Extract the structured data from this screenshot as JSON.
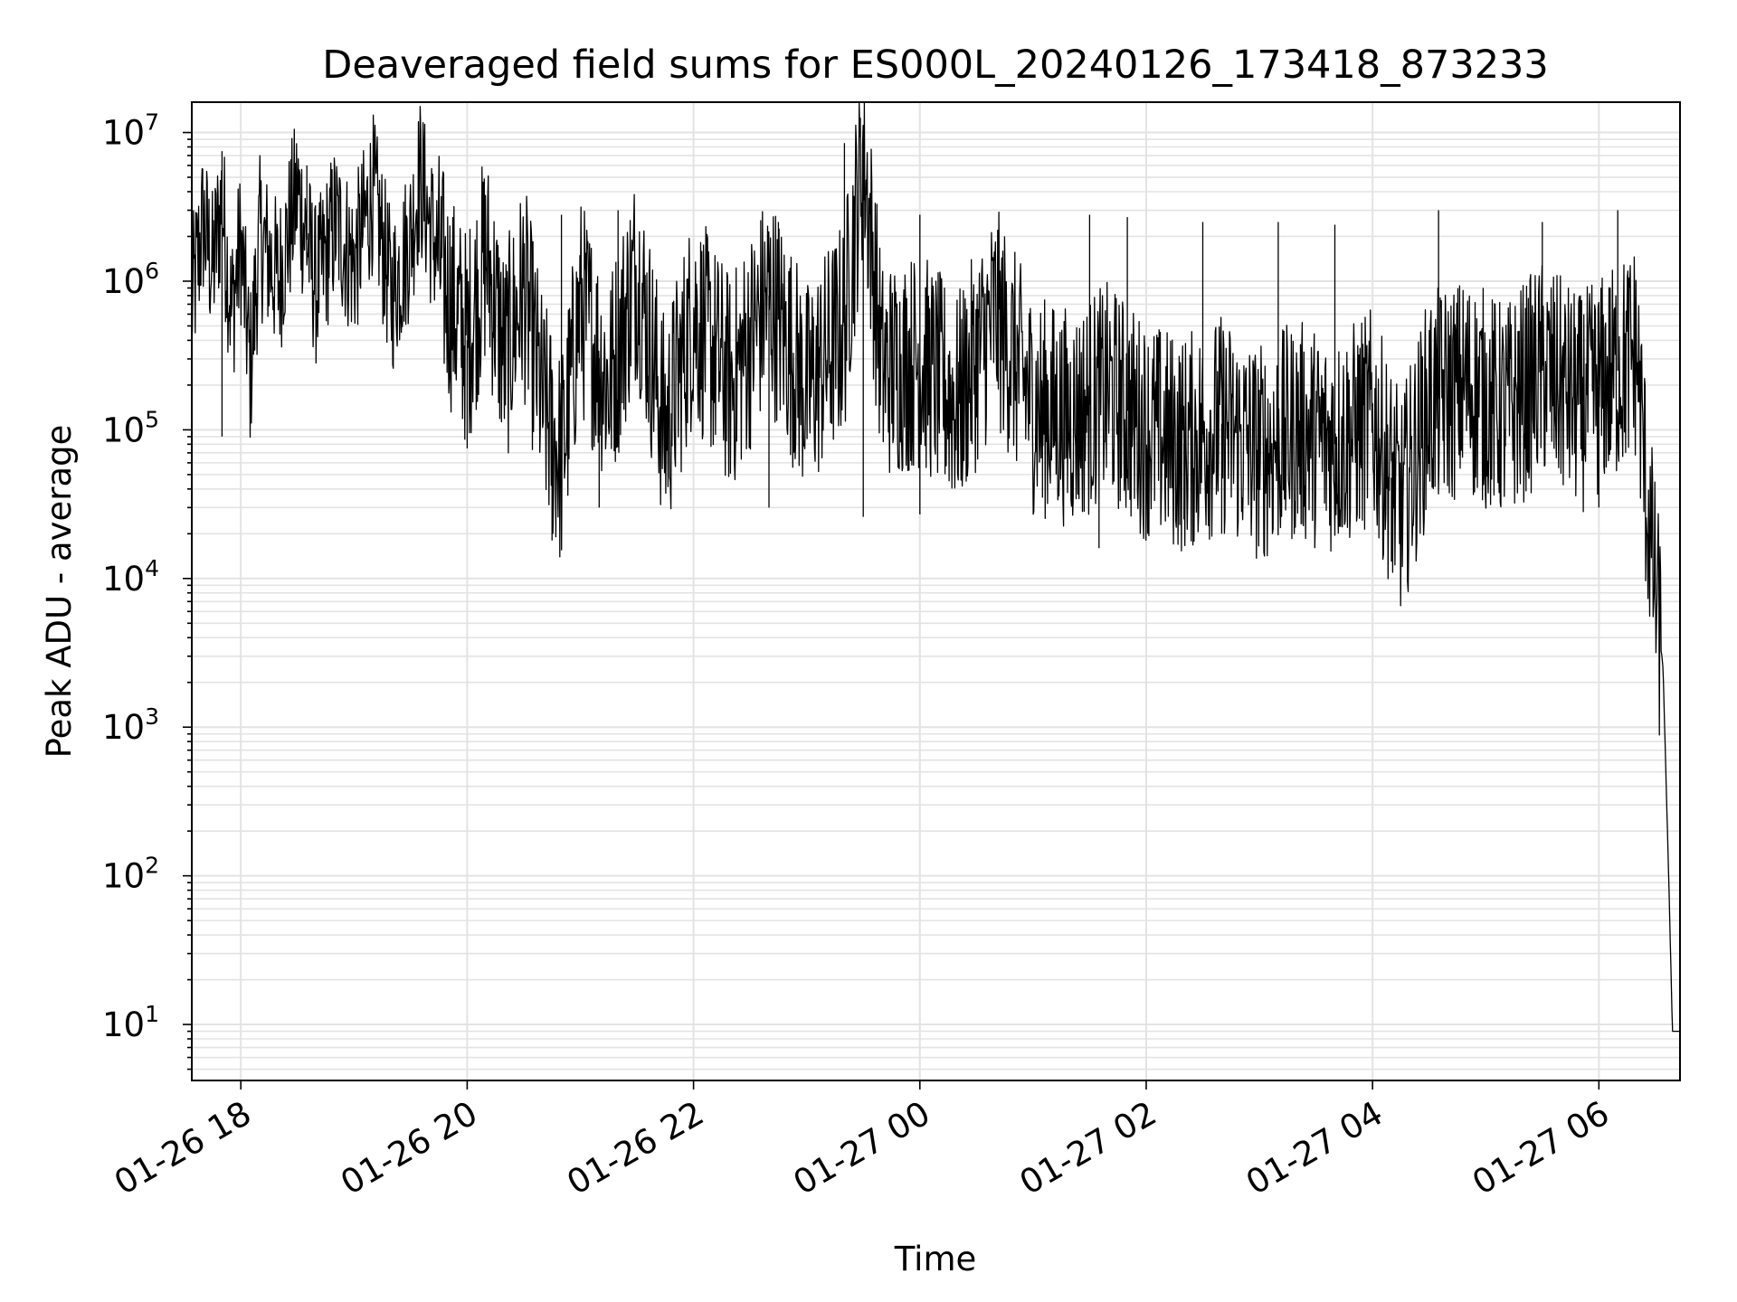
{
  "chart_data": {
    "type": "line",
    "title": "Deaveraged field sums for ES000L_20240126_173418_873233",
    "xlabel": "Time",
    "ylabel": "Peak ADU - average",
    "yscale": "log",
    "ylim": [
      4.2,
      16000000
    ],
    "xlim": [
      "01-26 17:34",
      "01-27 06:43"
    ],
    "grid": true,
    "x_ticks": [
      "01-26 18",
      "01-26 20",
      "01-26 22",
      "01-27 00",
      "01-27 02",
      "01-27 04",
      "01-27 06"
    ],
    "y_ticks": [
      {
        "base": "10",
        "exp": "1"
      },
      {
        "base": "10",
        "exp": "2"
      },
      {
        "base": "10",
        "exp": "3"
      },
      {
        "base": "10",
        "exp": "4"
      },
      {
        "base": "10",
        "exp": "5"
      },
      {
        "base": "10",
        "exp": "6"
      },
      {
        "base": "10",
        "exp": "7"
      }
    ],
    "series": [
      {
        "color": "#000000",
        "sampling_note": "representative envelope of the dense trace, values read off the log axis",
        "points": [
          [
            "01-26 17:34",
            700000
          ],
          [
            "01-26 17:40",
            2500000
          ],
          [
            "01-26 17:45",
            1200000
          ],
          [
            "01-26 17:50",
            3500000
          ],
          [
            "01-26 17:55",
            600000
          ],
          [
            "01-26 18:00",
            1800000
          ],
          [
            "01-26 18:05",
            250000
          ],
          [
            "01-26 18:10",
            2000000
          ],
          [
            "01-26 18:20",
            1000000
          ],
          [
            "01-26 18:30",
            4000000
          ],
          [
            "01-26 18:40",
            900000
          ],
          [
            "01-26 18:50",
            2500000
          ],
          [
            "01-26 19:00",
            1300000
          ],
          [
            "01-26 19:10",
            4000000
          ],
          [
            "01-26 19:20",
            800000
          ],
          [
            "01-26 19:30",
            2000000
          ],
          [
            "01-26 19:35",
            5000000
          ],
          [
            "01-26 19:40",
            2500000
          ],
          [
            "01-26 19:50",
            800000
          ],
          [
            "01-26 20:00",
            400000
          ],
          [
            "01-26 20:10",
            1500000
          ],
          [
            "01-26 20:20",
            300000
          ],
          [
            "01-26 20:30",
            900000
          ],
          [
            "01-26 20:40",
            150000
          ],
          [
            "01-26 20:50",
            60000
          ],
          [
            "01-26 21:00",
            700000
          ],
          [
            "01-26 21:15",
            200000
          ],
          [
            "01-26 21:30",
            1200000
          ],
          [
            "01-26 21:45",
            100000
          ],
          [
            "01-26 22:00",
            600000
          ],
          [
            "01-26 22:20",
            200000
          ],
          [
            "01-26 22:40",
            800000
          ],
          [
            "01-26 23:00",
            180000
          ],
          [
            "01-26 23:20",
            500000
          ],
          [
            "01-26 23:30",
            8000000
          ],
          [
            "01-26 23:40",
            250000
          ],
          [
            "01-27 00:00",
            300000
          ],
          [
            "01-27 00:20",
            150000
          ],
          [
            "01-27 00:40",
            600000
          ],
          [
            "01-27 01:00",
            150000
          ],
          [
            "01-27 01:20",
            120000
          ],
          [
            "01-27 01:40",
            180000
          ],
          [
            "01-27 02:00",
            100000
          ],
          [
            "01-27 02:20",
            80000
          ],
          [
            "01-27 02:40",
            110000
          ],
          [
            "01-27 03:00",
            70000
          ],
          [
            "01-27 03:20",
            100000
          ],
          [
            "01-27 03:40",
            80000
          ],
          [
            "01-27 04:00",
            120000
          ],
          [
            "01-27 04:15",
            30000
          ],
          [
            "01-27 04:30",
            150000
          ],
          [
            "01-27 04:50",
            200000
          ],
          [
            "01-27 05:10",
            130000
          ],
          [
            "01-27 05:30",
            250000
          ],
          [
            "01-27 05:50",
            150000
          ],
          [
            "01-27 06:10",
            250000
          ],
          [
            "01-27 06:20",
            350000
          ],
          [
            "01-27 06:25",
            40000
          ],
          [
            "01-27 06:30",
            8000
          ],
          [
            "01-27 06:34",
            2500
          ],
          [
            "01-27 06:37",
            100
          ],
          [
            "01-27 06:39",
            9
          ],
          [
            "01-27 06:43",
            9
          ]
        ],
        "spikes": [
          [
            "01-26 17:50",
            7500000
          ],
          [
            "01-26 18:35",
            6000000
          ],
          [
            "01-26 19:10",
            5800000
          ],
          [
            "01-26 20:50",
            2800000
          ],
          [
            "01-26 21:20",
            3000000
          ],
          [
            "01-26 22:45",
            2500000
          ],
          [
            "01-26 23:20",
            8500000
          ],
          [
            "01-27 00:00",
            2800000
          ],
          [
            "01-27 01:30",
            2800000
          ],
          [
            "01-27 01:50",
            2700000
          ],
          [
            "01-27 02:30",
            2500000
          ],
          [
            "01-27 03:10",
            2500000
          ],
          [
            "01-27 03:40",
            2400000
          ],
          [
            "01-27 04:35",
            3000000
          ],
          [
            "01-27 05:30",
            2500000
          ],
          [
            "01-27 06:10",
            3000000
          ]
        ],
        "dips": [
          [
            "01-26 17:50",
            90000
          ],
          [
            "01-26 20:00",
            75000
          ],
          [
            "01-26 20:45",
            18000
          ],
          [
            "01-26 21:10",
            30000
          ],
          [
            "01-26 22:40",
            30000
          ],
          [
            "01-26 23:30",
            26000
          ],
          [
            "01-27 00:00",
            27000
          ],
          [
            "01-27 01:05",
            35000
          ],
          [
            "01-27 01:35",
            16000
          ],
          [
            "01-27 02:20",
            25000
          ],
          [
            "01-27 02:40",
            20000
          ],
          [
            "01-27 03:10",
            25000
          ],
          [
            "01-27 04:10",
            13000
          ],
          [
            "01-27 05:00",
            30000
          ],
          [
            "01-27 06:00",
            30000
          ]
        ]
      }
    ]
  }
}
